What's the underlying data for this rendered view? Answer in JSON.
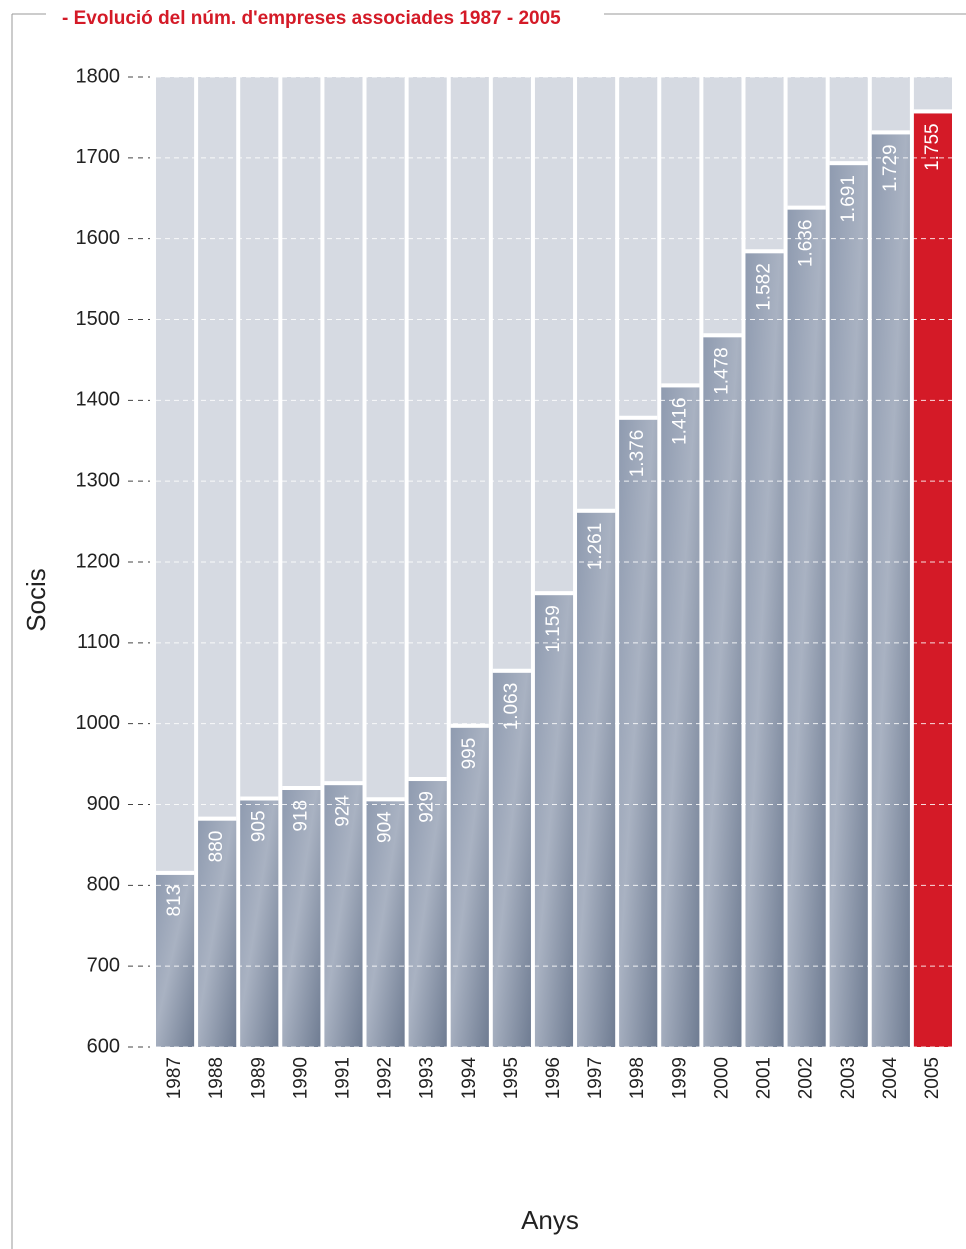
{
  "chart_data": {
    "type": "bar",
    "title": "- Evolució del núm. d'empreses associades 1987 - 2005",
    "x_label": "Anys",
    "y_label": "Socis",
    "categories": [
      "1987",
      "1988",
      "1989",
      "1990",
      "1991",
      "1992",
      "1993",
      "1994",
      "1995",
      "1996",
      "1997",
      "1998",
      "1999",
      "2000",
      "2001",
      "2002",
      "2003",
      "2004",
      "2005"
    ],
    "values": [
      813,
      880,
      905,
      918,
      924,
      904,
      929,
      995,
      1063,
      1159,
      1261,
      1376,
      1416,
      1478,
      1582,
      1636,
      1691,
      1729,
      1755
    ],
    "value_labels": [
      "813",
      "880",
      "905",
      "918",
      "924",
      "904",
      "929",
      "995",
      "1.063",
      "1.159",
      "1.261",
      "1.376",
      "1.416",
      "1.478",
      "1.582",
      "1.636",
      "1.691",
      "1.729",
      "1.755"
    ],
    "colors": [
      "#7a879b",
      "#7a879b",
      "#7a879b",
      "#7a879b",
      "#7a879b",
      "#7a879b",
      "#7a879b",
      "#7a879b",
      "#7a879b",
      "#7a879b",
      "#7a879b",
      "#7a879b",
      "#7a879b",
      "#7a879b",
      "#7a879b",
      "#7a879b",
      "#7a879b",
      "#7a879b",
      "#d41a27"
    ],
    "background_color": "#d6dae2",
    "ylim": [
      600,
      1800
    ],
    "yticks": [
      600,
      700,
      800,
      900,
      1000,
      1100,
      1200,
      1300,
      1400,
      1500,
      1600,
      1700,
      1800
    ],
    "grid": true
  }
}
